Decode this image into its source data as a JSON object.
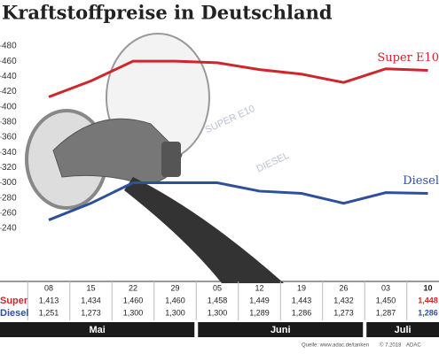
{
  "chart_data": {
    "type": "line",
    "title": "Kraftstoffpreise in Deutschland",
    "x": [
      "08",
      "15",
      "22",
      "29",
      "05",
      "12",
      "19",
      "26",
      "03",
      "10"
    ],
    "series": [
      {
        "name": "Super E10",
        "color": "#d0262b",
        "values": [
          1.413,
          1.434,
          1.46,
          1.46,
          1.458,
          1.449,
          1.443,
          1.432,
          1.45,
          1.448
        ],
        "value_labels": [
          "1,413",
          "1,434",
          "1,460",
          "1,460",
          "1,458",
          "1,449",
          "1,443",
          "1,432",
          "1,450",
          "1,448"
        ]
      },
      {
        "name": "Diesel",
        "color": "#2d4f9e",
        "values": [
          1.251,
          1.273,
          1.3,
          1.3,
          1.3,
          1.289,
          1.286,
          1.273,
          1.287,
          1.286
        ],
        "value_labels": [
          "1,251",
          "1,273",
          "1,300",
          "1,300",
          "1,300",
          "1,289",
          "1,286",
          "1,273",
          "1,287",
          "1,286"
        ]
      }
    ],
    "row_labels": [
      "Super",
      "Diesel"
    ],
    "months": [
      "Mai",
      "Juni",
      "Juli"
    ],
    "ylim": [
      1.24,
      1.48
    ],
    "yticks": [
      {
        "value": 1.48,
        "label": "480"
      },
      {
        "value": 1.46,
        "label": "460"
      },
      {
        "value": 1.44,
        "label": "440"
      },
      {
        "value": 1.42,
        "label": "420"
      },
      {
        "value": 1.4,
        "label": "400"
      },
      {
        "value": 1.38,
        "label": "380"
      },
      {
        "value": 1.36,
        "label": "360"
      },
      {
        "value": 1.34,
        "label": "340"
      },
      {
        "value": 1.32,
        "label": "320"
      },
      {
        "value": 1.3,
        "label": "300"
      },
      {
        "value": 1.28,
        "label": "280"
      },
      {
        "value": 1.26,
        "label": "260"
      },
      {
        "value": 1.24,
        "label": "240"
      }
    ],
    "display_texts": [
      "SUPER E10",
      "DIESEL"
    ],
    "source": "Quelle: www.adac.de/tanken",
    "copyright": "© 7.2018",
    "credit": "ADAC"
  }
}
